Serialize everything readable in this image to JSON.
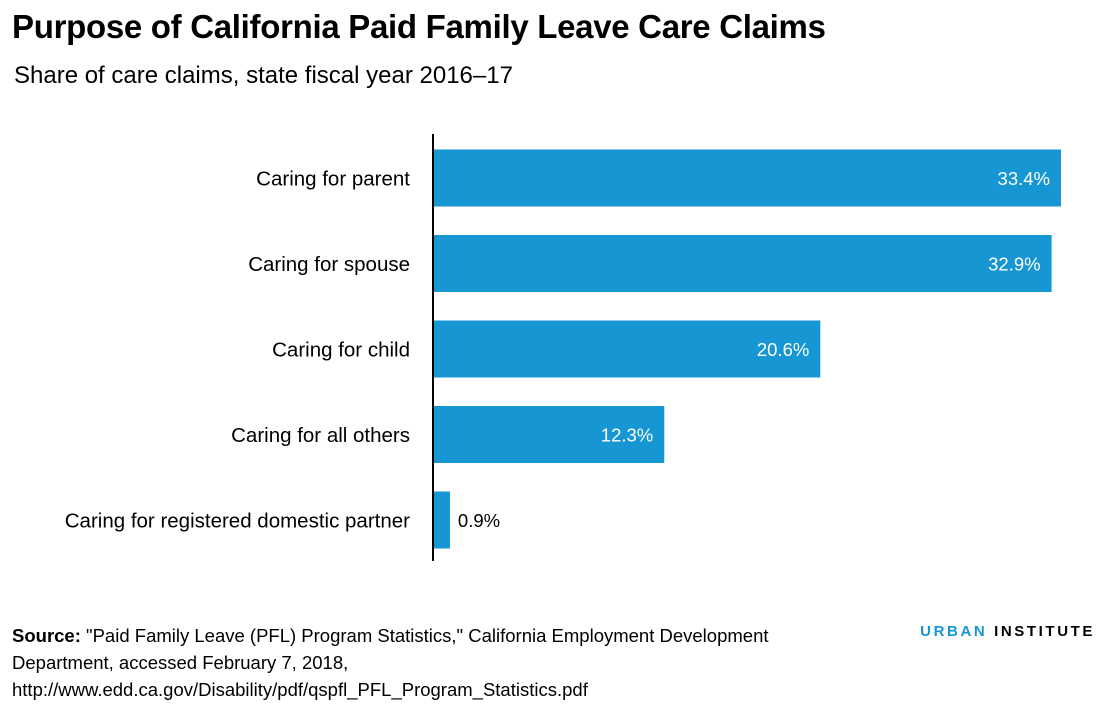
{
  "header": {
    "title": "Purpose of California Paid Family Leave Care Claims",
    "subtitle": "Share of care claims, state fiscal year 2016–17"
  },
  "chart_data": {
    "type": "bar",
    "orientation": "horizontal",
    "categories": [
      "Caring for parent",
      "Caring for spouse",
      "Caring for child",
      "Caring for all others",
      "Caring for registered domestic partner"
    ],
    "values": [
      33.4,
      32.9,
      20.6,
      12.3,
      0.9
    ],
    "value_labels": [
      "33.4%",
      "32.9%",
      "20.6%",
      "12.3%",
      "0.9%"
    ],
    "unit": "%",
    "title": "Purpose of California Paid Family Leave Care Claims",
    "subtitle": "Share of care claims, state fiscal year 2016–17",
    "xlabel": "",
    "ylabel": "",
    "xlim": [
      0,
      33.4
    ],
    "grid": false,
    "legend": "none",
    "bar_color": "#1696d2",
    "inside_label_color": "#ffffff",
    "outside_label_color": "#000000"
  },
  "source": {
    "label": "Source:",
    "text": " \"Paid Family Leave (PFL) Program Statistics,\" California Employment Development Department, accessed February 7, 2018, http://www.edd.ca.gov/Disability/pdf/qspfl_PFL_Program_Statistics.pdf"
  },
  "branding": {
    "urban": "URBAN",
    "institute": "INSTITUTE",
    "accent_color": "#1696d2"
  }
}
